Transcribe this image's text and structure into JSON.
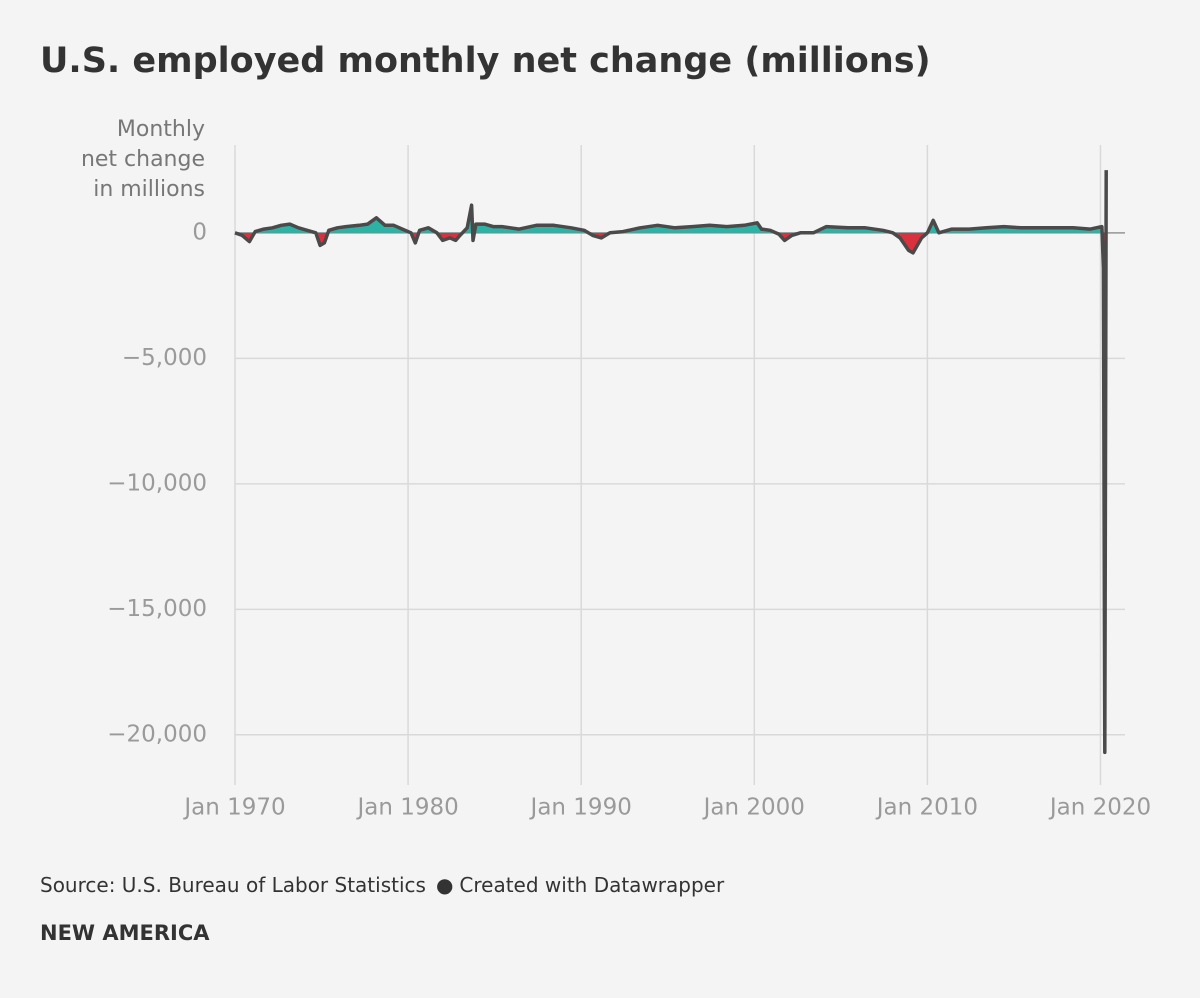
{
  "chart_data": {
    "type": "area-line",
    "title": "U.S. employed monthly net change (millions)",
    "y_label": [
      "Monthly",
      "net change",
      "in millions"
    ],
    "source": "Source: U.S. Bureau of Labor Statistics",
    "credit": "Created with Datawrapper",
    "footer": "NEW AMERICA",
    "positive_color": "#2bb3a6",
    "negative_color": "#d9323e",
    "line_color": "#4a4a4a",
    "grid": true,
    "xlim": [
      "1970-01",
      "2021-06"
    ],
    "xticks": [
      {
        "value": "1970-01",
        "label": "Jan 1970"
      },
      {
        "value": "1980-01",
        "label": "Jan 1980"
      },
      {
        "value": "1990-01",
        "label": "Jan 1990"
      },
      {
        "value": "2000-01",
        "label": "Jan 2000"
      },
      {
        "value": "2010-01",
        "label": "Jan 2010"
      },
      {
        "value": "2020-01",
        "label": "Jan 2020"
      }
    ],
    "ylim": [
      -22000,
      3500
    ],
    "yticks": [
      0,
      {
        "value": -5000,
        "label": "−5,000"
      },
      {
        "value": -10000,
        "label": "−10,000"
      },
      {
        "value": -15000,
        "label": "−15,000"
      },
      {
        "value": -20000,
        "label": "−20,000"
      }
    ],
    "x": [
      "1970-01",
      "1970-06",
      "1970-11",
      "1971-03",
      "1971-09",
      "1972-03",
      "1972-09",
      "1973-03",
      "1973-09",
      "1974-03",
      "1974-09",
      "1974-12",
      "1975-03",
      "1975-06",
      "1975-12",
      "1976-06",
      "1977-03",
      "1977-09",
      "1978-03",
      "1978-09",
      "1979-03",
      "1979-09",
      "1980-03",
      "1980-06",
      "1980-09",
      "1981-03",
      "1981-09",
      "1982-01",
      "1982-06",
      "1982-10",
      "1983-01",
      "1983-06",
      "1983-09",
      "1983-10",
      "1983-12",
      "1984-06",
      "1984-12",
      "1985-06",
      "1986-06",
      "1987-06",
      "1988-06",
      "1989-06",
      "1990-03",
      "1990-09",
      "1991-03",
      "1991-09",
      "1992-06",
      "1993-06",
      "1994-06",
      "1995-06",
      "1996-06",
      "1997-06",
      "1998-06",
      "1999-06",
      "2000-03",
      "2000-06",
      "2000-12",
      "2001-06",
      "2001-10",
      "2002-03",
      "2002-09",
      "2003-06",
      "2004-03",
      "2005-06",
      "2006-06",
      "2007-06",
      "2008-01",
      "2008-06",
      "2008-12",
      "2009-03",
      "2009-09",
      "2010-01",
      "2010-05",
      "2010-09",
      "2011-06",
      "2012-06",
      "2013-06",
      "2014-06",
      "2015-06",
      "2016-06",
      "2017-06",
      "2018-06",
      "2019-06",
      "2020-02",
      "2020-03",
      "2020-04",
      "2020-05"
    ],
    "values": [
      0,
      -100,
      -350,
      50,
      150,
      200,
      300,
      350,
      200,
      100,
      0,
      -500,
      -400,
      100,
      200,
      250,
      300,
      350,
      600,
      300,
      300,
      150,
      0,
      -400,
      100,
      200,
      0,
      -300,
      -200,
      -300,
      -100,
      200,
      1100,
      -300,
      350,
      350,
      250,
      250,
      150,
      300,
      300,
      200,
      100,
      -100,
      -200,
      0,
      50,
      200,
      300,
      200,
      250,
      300,
      250,
      300,
      400,
      150,
      100,
      -50,
      -300,
      -100,
      0,
      0,
      250,
      200,
      200,
      100,
      0,
      -200,
      -700,
      -800,
      -200,
      0,
      500,
      0,
      150,
      150,
      200,
      250,
      200,
      200,
      200,
      200,
      150,
      250,
      -1400,
      -20700,
      2500
    ]
  }
}
